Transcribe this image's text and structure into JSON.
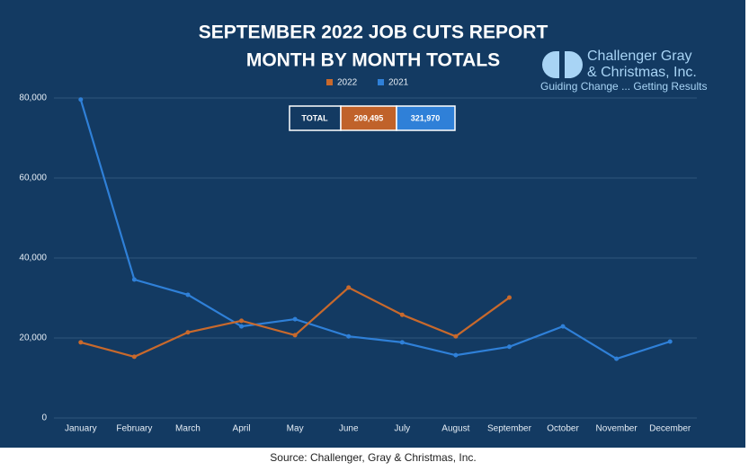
{
  "chart_data": {
    "type": "line",
    "title": "SEPTEMBER 2022 JOB CUTS REPORT",
    "subtitle": "MONTH BY MONTH TOTALS",
    "categories": [
      "January",
      "February",
      "March",
      "April",
      "May",
      "June",
      "July",
      "August",
      "September",
      "October",
      "November",
      "December"
    ],
    "series": [
      {
        "name": "2022",
        "color": "#c8692c",
        "values": [
          18900,
          15300,
          21400,
          24300,
          20700,
          32600,
          25800,
          20400,
          30100,
          null,
          null,
          null
        ]
      },
      {
        "name": "2021",
        "color": "#2f80d8",
        "values": [
          79600,
          34600,
          30800,
          22900,
          24700,
          20400,
          18900,
          15700,
          17800,
          22900,
          14800,
          19100
        ]
      }
    ],
    "ylim": [
      0,
      80000
    ],
    "yticks": [
      0,
      {
        "value": 20000,
        "label": "20,000"
      },
      {
        "value": 40000,
        "label": "40,000"
      },
      {
        "value": 60000,
        "label": "60,000"
      },
      {
        "value": 80000,
        "label": "80,000"
      }
    ],
    "grid": true,
    "legend": "top",
    "totals": {
      "label": "TOTAL",
      "values": [
        "209,495",
        "321,970"
      ]
    },
    "logo": {
      "line1": "Challenger Gray",
      "line2": "& Christmas, Inc.",
      "tagline": "Guiding Change ... Getting Results"
    },
    "source": "Source: Challenger, Gray & Christmas, Inc."
  }
}
